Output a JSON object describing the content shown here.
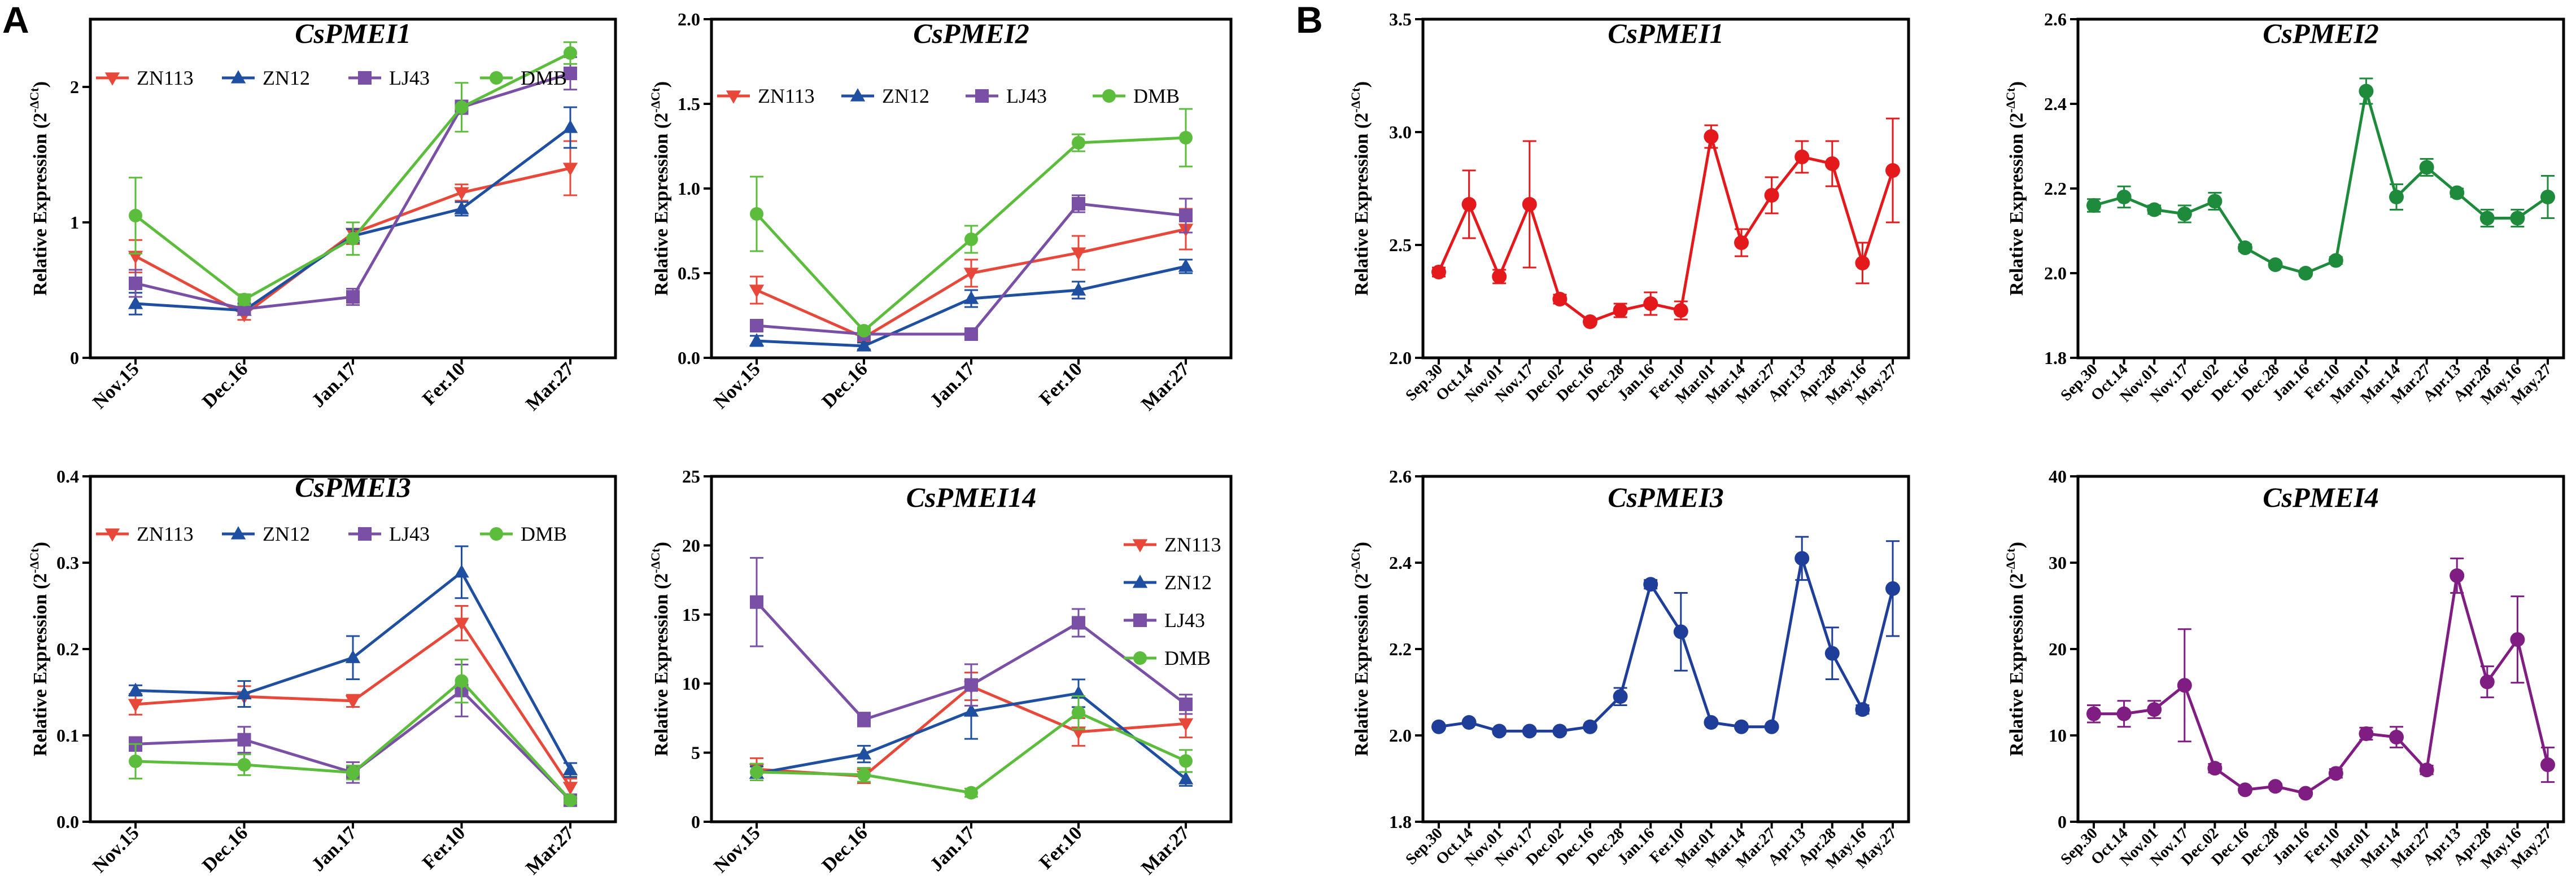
{
  "panel_labels": [
    "A",
    "B"
  ],
  "colors": {
    "ZN113": "#e8483a",
    "ZN12": "#1f4fa0",
    "LJ43": "#7a4fa6",
    "DMB": "#5cbd3c",
    "red": "#e3191c",
    "green": "#1e8a3c",
    "blue": "#1f3e9a",
    "purple": "#7f1d82"
  },
  "chart_data": [
    {
      "type": "line",
      "title": "CsPMEI1",
      "ylabel": "Relative Expression (2",
      "ylabel_sup": "-ΔCt",
      "ylabel_end": ")",
      "categories": [
        "Nov.15",
        "Dec.16",
        "Jan.17",
        "Fer.10",
        "Mar.27"
      ],
      "ylim": [
        0,
        2.5
      ],
      "yticks": [
        0,
        1,
        2
      ],
      "ytick_labels": [
        "0",
        "1",
        "2"
      ],
      "legend": "top",
      "series": [
        {
          "name": "ZN113",
          "values": [
            0.75,
            0.32,
            0.92,
            1.22,
            1.4
          ],
          "errors": [
            0.12,
            0.04,
            0.08,
            0.06,
            0.2
          ]
        },
        {
          "name": "ZN12",
          "values": [
            0.4,
            0.35,
            0.9,
            1.1,
            1.7
          ],
          "errors": [
            0.08,
            0.03,
            0.05,
            0.05,
            0.15
          ]
        },
        {
          "name": "LJ43",
          "values": [
            0.55,
            0.36,
            0.45,
            1.85,
            2.1
          ],
          "errors": [
            0.1,
            0.03,
            0.06,
            0.05,
            0.12
          ]
        },
        {
          "name": "DMB",
          "values": [
            1.05,
            0.43,
            0.88,
            1.85,
            2.25
          ],
          "errors": [
            0.28,
            0.04,
            0.12,
            0.18,
            0.08
          ]
        }
      ]
    },
    {
      "type": "line",
      "title": "CsPMEI2",
      "ylabel": "Relative Expression (2",
      "ylabel_sup": "-ΔCt",
      "ylabel_end": ")",
      "categories": [
        "Nov.15",
        "Dec.16",
        "Jan.17",
        "Fer.10",
        "Mar.27"
      ],
      "ylim": [
        0,
        2.0
      ],
      "yticks": [
        0,
        0.5,
        1,
        1.5,
        2
      ],
      "ytick_labels": [
        "0.0",
        "0.5",
        "1.0",
        "1.5",
        "2.0"
      ],
      "legend": "top",
      "series": [
        {
          "name": "ZN113",
          "values": [
            0.4,
            0.12,
            0.5,
            0.62,
            0.76
          ],
          "errors": [
            0.08,
            0.02,
            0.08,
            0.1,
            0.12
          ]
        },
        {
          "name": "ZN12",
          "values": [
            0.1,
            0.07,
            0.35,
            0.4,
            0.54
          ],
          "errors": [
            0.03,
            0.02,
            0.05,
            0.05,
            0.04
          ]
        },
        {
          "name": "LJ43",
          "values": [
            0.19,
            0.14,
            0.14,
            0.91,
            0.84
          ],
          "errors": [
            0.03,
            0.02,
            0.02,
            0.05,
            0.1
          ]
        },
        {
          "name": "DMB",
          "values": [
            0.85,
            0.16,
            0.7,
            1.27,
            1.3
          ],
          "errors": [
            0.22,
            0.02,
            0.08,
            0.05,
            0.17
          ]
        }
      ]
    },
    {
      "type": "line",
      "title": "CsPMEI3",
      "ylabel": "Relative Expression (2",
      "ylabel_sup": "-ΔCt",
      "ylabel_end": ")",
      "categories": [
        "Nov.15",
        "Dec.16",
        "Jan.17",
        "Fer.10",
        "Mar.27"
      ],
      "ylim": [
        0,
        0.4
      ],
      "yticks": [
        0,
        0.1,
        0.2,
        0.3,
        0.4
      ],
      "ytick_labels": [
        "0.0",
        "0.1",
        "0.2",
        "0.3",
        "0.4"
      ],
      "legend": "top",
      "series": [
        {
          "name": "ZN113",
          "values": [
            0.136,
            0.145,
            0.14,
            0.23,
            0.04
          ],
          "errors": [
            0.012,
            0.012,
            0.007,
            0.02,
            0.01
          ]
        },
        {
          "name": "ZN12",
          "values": [
            0.152,
            0.148,
            0.19,
            0.289,
            0.06
          ],
          "errors": [
            0.006,
            0.015,
            0.025,
            0.03,
            0.008
          ]
        },
        {
          "name": "LJ43",
          "values": [
            0.09,
            0.095,
            0.057,
            0.152,
            0.025
          ],
          "errors": [
            0.008,
            0.015,
            0.012,
            0.03,
            0.005
          ]
        },
        {
          "name": "DMB",
          "values": [
            0.07,
            0.066,
            0.057,
            0.163,
            0.025
          ],
          "errors": [
            0.02,
            0.012,
            0.008,
            0.025,
            0.004
          ]
        }
      ]
    },
    {
      "type": "line",
      "title": "CsPMEI14",
      "ylabel": "Relative Expression (2",
      "ylabel_sup": "-ΔCt",
      "ylabel_end": ")",
      "categories": [
        "Nov.15",
        "Dec.16",
        "Jan.17",
        "Fer.10",
        "Mar.27"
      ],
      "ylim": [
        0,
        25
      ],
      "yticks": [
        0,
        5,
        10,
        15,
        20,
        25
      ],
      "ytick_labels": [
        "0",
        "5",
        "10",
        "15",
        "20",
        "25"
      ],
      "legend": "right-column",
      "series": [
        {
          "name": "ZN113",
          "values": [
            3.8,
            3.3,
            9.8,
            6.5,
            7.1
          ],
          "errors": [
            0.8,
            0.5,
            1,
            1,
            1
          ]
        },
        {
          "name": "ZN12",
          "values": [
            3.5,
            4.9,
            8.0,
            9.3,
            3.1
          ],
          "errors": [
            0.5,
            0.6,
            2,
            1,
            0.5
          ]
        },
        {
          "name": "LJ43",
          "values": [
            15.9,
            7.4,
            9.9,
            14.4,
            8.5
          ],
          "errors": [
            3.2,
            0.5,
            1.5,
            1,
            0.7
          ]
        },
        {
          "name": "DMB",
          "values": [
            3.6,
            3.4,
            2.1,
            7.9,
            4.4
          ],
          "errors": [
            0.6,
            0.5,
            0.3,
            1.2,
            0.8
          ]
        }
      ]
    },
    {
      "type": "line",
      "title": "CsPMEI1",
      "ylabel": "Relative Expression (2",
      "ylabel_sup": "-ΔCt",
      "ylabel_end": ")",
      "categories": [
        "Sep.30",
        "Oct.14",
        "Nov.01",
        "Nov.17",
        "Dec.02",
        "Dec.16",
        "Dec.28",
        "Jan.16",
        "Fer.10",
        "Mar.01",
        "Mar.14",
        "Mar.27",
        "Apr.13",
        "Apr.28",
        "May.16",
        "May.27"
      ],
      "ylim": [
        2.0,
        3.5
      ],
      "yticks": [
        2,
        2.5,
        3,
        3.5
      ],
      "ytick_labels": [
        "2.0",
        "2.5",
        "3.0",
        "3.5"
      ],
      "series": [
        {
          "name": "CsPMEI1",
          "color_key": "red",
          "values": [
            2.38,
            2.68,
            2.36,
            2.68,
            2.26,
            2.16,
            2.21,
            2.24,
            2.21,
            2.98,
            2.51,
            2.72,
            2.89,
            2.86,
            2.42,
            2.83
          ],
          "errors": [
            0.02,
            0.15,
            0.03,
            0.28,
            0.02,
            0.01,
            0.03,
            0.05,
            0.04,
            0.05,
            0.06,
            0.08,
            0.07,
            0.1,
            0.09,
            0.23
          ]
        }
      ]
    },
    {
      "type": "line",
      "title": "CsPMEI2",
      "ylabel": "Relative Expression (2",
      "ylabel_sup": "-ΔCt",
      "ylabel_end": ")",
      "categories": [
        "Sep.30",
        "Oct.14",
        "Nov.01",
        "Nov.17",
        "Dec.02",
        "Dec.16",
        "Dec.28",
        "Jan.16",
        "Fer.10",
        "Mar.01",
        "Mar.14",
        "Mar.27",
        "Apr.13",
        "Apr.28",
        "May.16",
        "May.27"
      ],
      "ylim": [
        1.8,
        2.6
      ],
      "yticks": [
        1.8,
        2.0,
        2.2,
        2.4,
        2.6
      ],
      "ytick_labels": [
        "1.8",
        "2.0",
        "2.2",
        "2.4",
        "2.6"
      ],
      "series": [
        {
          "name": "CsPMEI2",
          "color_key": "green",
          "values": [
            2.16,
            2.18,
            2.15,
            2.14,
            2.17,
            2.06,
            2.02,
            2.0,
            2.03,
            2.43,
            2.18,
            2.25,
            2.19,
            2.13,
            2.13,
            2.18
          ],
          "errors": [
            0.015,
            0.025,
            0.01,
            0.02,
            0.02,
            0.008,
            0.006,
            0.006,
            0.008,
            0.03,
            0.03,
            0.02,
            0.01,
            0.02,
            0.02,
            0.05
          ]
        }
      ]
    },
    {
      "type": "line",
      "title": "CsPMEI3",
      "ylabel": "Relative Expression (2",
      "ylabel_sup": "-ΔCt",
      "ylabel_end": ")",
      "categories": [
        "Sep.30",
        "Oct.14",
        "Nov.01",
        "Nov.17",
        "Dec.02",
        "Dec.16",
        "Dec.28",
        "Jan.16",
        "Fer.10",
        "Mar.01",
        "Mar.14",
        "Mar.27",
        "Apr.13",
        "Apr.28",
        "May.16",
        "May.27"
      ],
      "ylim": [
        1.8,
        2.6
      ],
      "yticks": [
        1.8,
        2.0,
        2.2,
        2.4,
        2.6
      ],
      "ytick_labels": [
        "1.8",
        "2.0",
        "2.2",
        "2.4",
        "2.6"
      ],
      "series": [
        {
          "name": "CsPMEI3",
          "color_key": "blue",
          "values": [
            2.02,
            2.03,
            2.01,
            2.01,
            2.01,
            2.02,
            2.09,
            2.35,
            2.24,
            2.03,
            2.02,
            2.02,
            2.41,
            2.19,
            2.06,
            2.34
          ],
          "errors": [
            0.005,
            0.005,
            0.005,
            0.005,
            0.005,
            0.005,
            0.02,
            0.01,
            0.09,
            0.005,
            0.005,
            0.005,
            0.05,
            0.06,
            0.01,
            0.11
          ]
        }
      ]
    },
    {
      "type": "line",
      "title": "CsPMEI4",
      "ylabel": "Relative Expression (2",
      "ylabel_sup": "-ΔCt",
      "ylabel_end": ")",
      "categories": [
        "Sep.30",
        "Oct.14",
        "Nov.01",
        "Nov.17",
        "Dec.02",
        "Dec.16",
        "Dec.28",
        "Jan.16",
        "Fer.10",
        "Mar.01",
        "Mar.14",
        "Mar.27",
        "Apr.13",
        "Apr.28",
        "May.16",
        "May.27"
      ],
      "ylim": [
        0,
        40
      ],
      "yticks": [
        0,
        10,
        20,
        30,
        40
      ],
      "ytick_labels": [
        "0",
        "10",
        "20",
        "30",
        "40"
      ],
      "series": [
        {
          "name": "CsPMEI4",
          "color_key": "purple",
          "values": [
            12.5,
            12.5,
            13.0,
            15.8,
            6.2,
            3.7,
            4.1,
            3.3,
            5.6,
            10.2,
            9.8,
            6.0,
            28.5,
            16.2,
            21.1,
            6.6
          ],
          "errors": [
            1.0,
            1.5,
            1.0,
            6.5,
            0.5,
            0.3,
            0.3,
            0.3,
            0.5,
            0.7,
            1.2,
            0.5,
            2.0,
            1.8,
            5.0,
            2.0
          ]
        }
      ]
    }
  ]
}
